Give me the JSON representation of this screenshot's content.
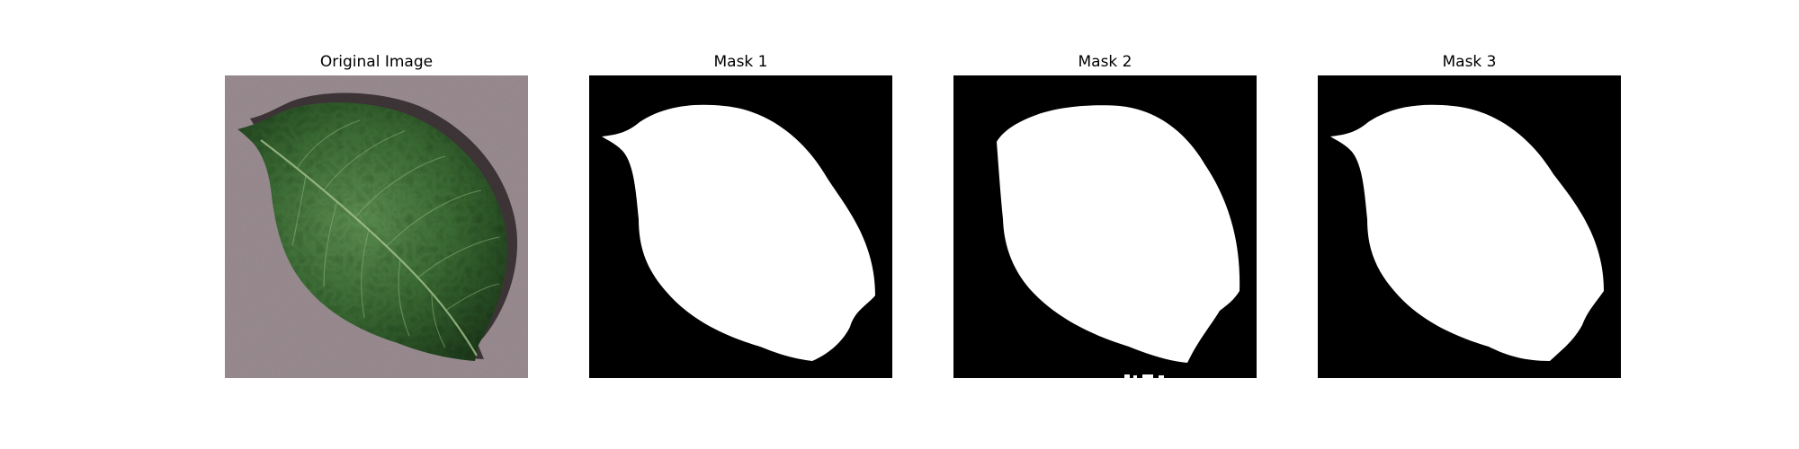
{
  "figure": {
    "panels": [
      {
        "title": "Original Image",
        "kind": "photo",
        "content": "leaf-photo"
      },
      {
        "title": "Mask 1",
        "kind": "mask",
        "content": "leaf-mask"
      },
      {
        "title": "Mask 2",
        "kind": "mask",
        "content": "leaf-mask"
      },
      {
        "title": "Mask 3",
        "kind": "mask",
        "content": "leaf-mask"
      }
    ],
    "colors": {
      "background": "#ffffff",
      "mask_background": "#000000",
      "mask_foreground": "#ffffff",
      "photo_background": "#9c8e93",
      "leaf_dark": "#1f3d1c",
      "leaf_mid": "#3a6a33",
      "leaf_light": "#5e8f52",
      "vein": "#a8c48f",
      "shadow": "#2b2426"
    }
  }
}
